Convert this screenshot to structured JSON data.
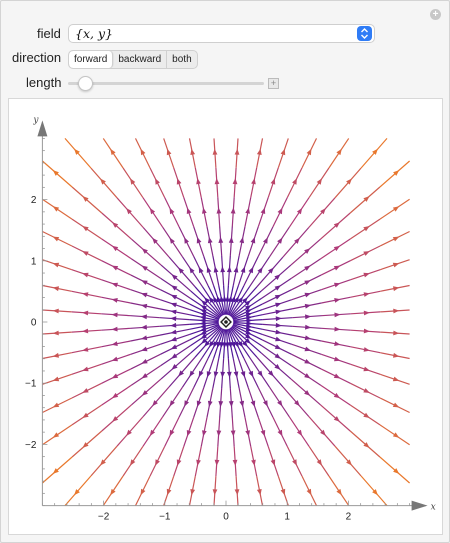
{
  "controls": {
    "field_label": "field",
    "field_value": "{x, y}",
    "direction_label": "direction",
    "direction_options": [
      "forward",
      "backward",
      "both"
    ],
    "direction_selected": "forward",
    "length_label": "length",
    "length_level": 0.05
  },
  "chart_data": {
    "type": "vector-field",
    "field": "{x, y}",
    "xlim": [
      -3,
      3
    ],
    "ylim": [
      -3,
      3
    ],
    "xlabel": "x",
    "ylabel": "y",
    "xticks": [
      -2,
      -1,
      0,
      1,
      2
    ],
    "yticks": [
      -2,
      -1,
      0,
      1,
      2
    ],
    "grid": false,
    "color_low": "#3b10a0",
    "color_mid": "#b03a78",
    "color_high": "#ff9010",
    "direction": "forward"
  }
}
